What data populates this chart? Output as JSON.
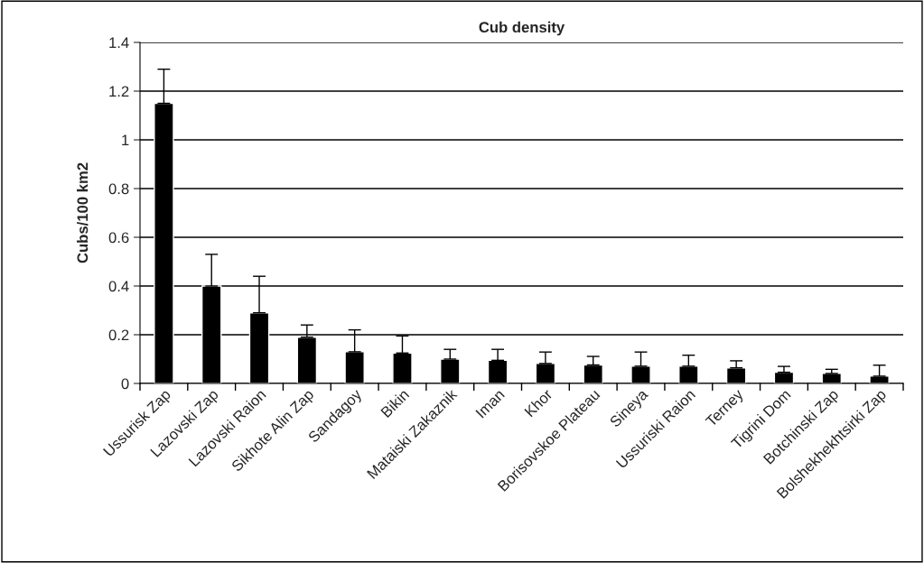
{
  "chart_data": {
    "type": "bar",
    "title": "Cub density",
    "ylabel": "Cubs/100 km2",
    "categories": [
      "Ussurisk Zap",
      "Lazovski Zap",
      "Lazovski Raion",
      "Sikhote Alin Zap",
      "Sandagoy",
      "Bikin",
      "Mataiski Zakaznik",
      "Iman",
      "Khor",
      "Borisovskoe Plateau",
      "Sineya",
      "Ussuriski Raion",
      "Terney",
      "Tigrini Dom",
      "Botchinski Zap",
      "Bolshekhekhtsirki Zap"
    ],
    "values": [
      1.15,
      0.4,
      0.29,
      0.19,
      0.13,
      0.125,
      0.1,
      0.095,
      0.082,
      0.076,
      0.071,
      0.071,
      0.064,
      0.046,
      0.041,
      0.03
    ],
    "errors": [
      [
        1.15,
        1.29
      ],
      [
        0.4,
        0.53
      ],
      [
        0.29,
        0.44
      ],
      [
        0.19,
        0.24
      ],
      [
        0.13,
        0.22
      ],
      [
        0.125,
        0.195
      ],
      [
        0.1,
        0.14
      ],
      [
        0.095,
        0.14
      ],
      [
        0.082,
        0.129
      ],
      [
        0.076,
        0.111
      ],
      [
        0.071,
        0.129
      ],
      [
        0.071,
        0.116
      ],
      [
        0.064,
        0.093
      ],
      [
        0.046,
        0.07
      ],
      [
        0.041,
        0.058
      ],
      [
        0.03,
        0.075
      ]
    ],
    "color": "#000000",
    "ylim": [
      0,
      1.4
    ],
    "yticks": [
      0,
      0.2,
      0.4,
      0.6,
      0.8,
      1,
      1.2,
      1.4
    ],
    "grid": "y",
    "legend": false
  }
}
